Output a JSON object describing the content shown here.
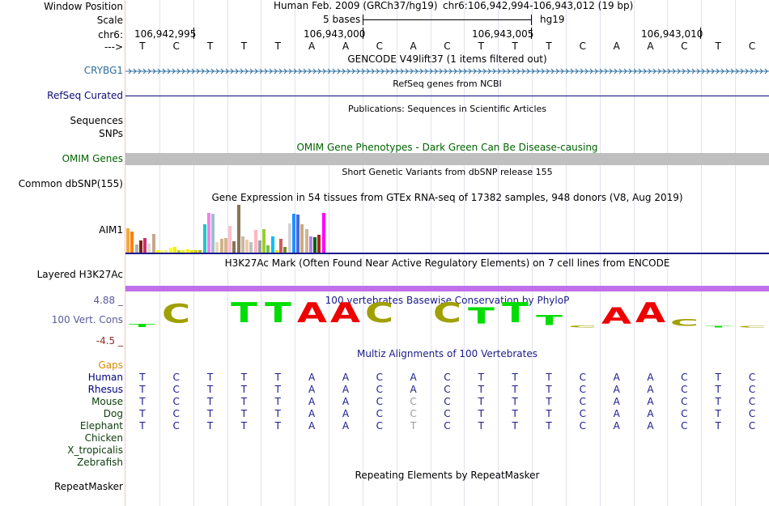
{
  "header": {
    "window_position_label": "Window Position",
    "scale_label": "Scale",
    "chrom_label": "chr6:",
    "strand_label": "--->",
    "assembly": "Human Feb. 2009 (GRCh37/hg19)",
    "position": "chr6:106,942,994-106,943,012 (19 bp)",
    "scale_text": "5 bases",
    "scale_db": "hg19",
    "coords": [
      "106,942,995",
      "106,943,000",
      "106,943,005",
      "106,943,010"
    ]
  },
  "sequence": [
    "T",
    "C",
    "T",
    "T",
    "T",
    "A",
    "A",
    "C",
    "A",
    "C",
    "T",
    "T",
    "T",
    "C",
    "A",
    "A",
    "C",
    "T",
    "C"
  ],
  "tracks": {
    "gencode_title": "GENCODE V49lift37 (1 items filtered out)",
    "crybg1_label": "CRYBG1",
    "refseq_title": "RefSeq genes from NCBI",
    "refseq_label": "RefSeq Curated",
    "pub_title": "Publications: Sequences in Scientific Articles",
    "sequences_label": "Sequences",
    "snps_label": "SNPs",
    "omim_title": "OMIM Gene Phenotypes - Dark Green Can Be Disease-causing",
    "omim_label": "OMIM Genes",
    "dbsnp_title": "Short Genetic Variants from dbSNP release 155",
    "dbsnp_label": "Common dbSNP(155)",
    "gtex_title": "Gene Expression in 54 tissues from GTEx RNA-seq of 17382 samples, 948 donors (V8, Aug 2019)",
    "gtex_label": "AIM1",
    "h3k27_title": "H3K27Ac Mark (Often Found Near Active Regulatory Elements) on 7 cell lines from ENCODE",
    "h3k27_label": "Layered H3K27Ac",
    "phylop_title": "100 vertebrates Basewise Conservation by PhyloP",
    "phylop_label": "100 Vert. Cons",
    "phylop_max": "4.88 _",
    "phylop_min": "-4.5 _",
    "multiz_title": "Multiz Alignments of 100 Vertebrates",
    "gaps_label": "Gaps",
    "repeat_title": "Repeating Elements by RepeatMasker",
    "repeat_label": "RepeatMasker"
  },
  "colors": {
    "crybg1": "#2e6fa0",
    "refseq": "#0c0c78",
    "omim": "#006400",
    "phylop_label": "#5a5a9c",
    "phylop_min": "#8b2d2d",
    "gaps": "#d68a00",
    "species": "#0b3d0b",
    "species_primate": "#000080",
    "h3k27": "#c070ea",
    "omim_bar": "#bfbfbf"
  },
  "gtex_bars": {
    "heights": [
      31,
      27,
      11,
      16,
      19,
      12,
      24,
      4,
      4,
      4,
      7,
      8,
      4,
      4,
      5,
      4,
      4,
      4,
      36,
      50,
      49,
      14,
      18,
      19,
      34,
      15,
      60,
      21,
      17,
      14,
      29,
      16,
      30,
      10,
      21,
      4,
      18,
      8,
      37,
      49,
      48,
      36,
      30,
      21,
      20,
      23,
      50
    ],
    "colors": [
      "#f4a742",
      "#ff7f00",
      "#b0b0b0",
      "#8b1a1a",
      "#cd2f6d",
      "#dcdcdc",
      "#c8a88c",
      "#f5f500",
      "#ffff66",
      "#f0e68c",
      "#ffff00",
      "#eeee00",
      "#cccc00",
      "#f0f000",
      "#ffef00",
      "#e0e000",
      "#c9c900",
      "#b5b500",
      "#1fc8c8",
      "#ee82ee",
      "#9ac0cd",
      "#eed5b7",
      "#cdb38b",
      "#d2b48c",
      "#ffc0cb",
      "#8b7355",
      "#8b7355",
      "#cdb79e",
      "#eecbad",
      "#c0c0c0",
      "#ffb6c1",
      "#a0a0a0",
      "#9acd32",
      "#7bc043",
      "#00bfff",
      "#ffd700",
      "#cd5c5c",
      "#6b8e23",
      "#d3d3d3",
      "#1e90ff",
      "#4169e1",
      "#cdaa7d",
      "#d2b48c",
      "#ab82ff",
      "#006400",
      "#b22222",
      "#ff00ff"
    ]
  },
  "phylop": {
    "bases": [
      "T",
      "C",
      "T",
      "T",
      "T",
      "A",
      "A",
      "C",
      "A",
      "C",
      "T",
      "T",
      "T",
      "C",
      "A",
      "A",
      "C",
      "T",
      "C"
    ],
    "scale": [
      0.15,
      0.95,
      0,
      1,
      1,
      1,
      1,
      1,
      0,
      1,
      0.8,
      1,
      0.5,
      0.1,
      0.8,
      1,
      0.35,
      0.08,
      0.08
    ],
    "colors": [
      "#00dd00",
      "#a0a000",
      "#ffffff",
      "#00dd00",
      "#00dd00",
      "#ee0000",
      "#ee0000",
      "#a0a000",
      "#ffffff",
      "#a0a000",
      "#00dd00",
      "#00dd00",
      "#00dd00",
      "#a0a000",
      "#ee0000",
      "#ee0000",
      "#a0a000",
      "#00dd00",
      "#a0a000"
    ]
  },
  "multiz": [
    {
      "name": "Human",
      "bases": [
        "T",
        "C",
        "T",
        "T",
        "T",
        "A",
        "A",
        "C",
        "A",
        "C",
        "T",
        "T",
        "T",
        "C",
        "A",
        "A",
        "C",
        "T",
        "C"
      ],
      "gray": []
    },
    {
      "name": "Rhesus",
      "bases": [
        "T",
        "C",
        "T",
        "T",
        "T",
        "A",
        "A",
        "C",
        "A",
        "C",
        "T",
        "T",
        "T",
        "C",
        "A",
        "A",
        "C",
        "T",
        "C"
      ],
      "gray": []
    },
    {
      "name": "Mouse",
      "bases": [
        "T",
        "C",
        "T",
        "T",
        "T",
        "A",
        "A",
        "C",
        "C",
        "C",
        "T",
        "T",
        "T",
        "C",
        "A",
        "A",
        "C",
        "T",
        "C"
      ],
      "gray": [
        8
      ]
    },
    {
      "name": "Dog",
      "bases": [
        "T",
        "C",
        "T",
        "T",
        "T",
        "A",
        "A",
        "C",
        "C",
        "C",
        "T",
        "T",
        "T",
        "C",
        "A",
        "A",
        "C",
        "T",
        "C"
      ],
      "gray": [
        8
      ]
    },
    {
      "name": "Elephant",
      "bases": [
        "T",
        "C",
        "T",
        "T",
        "T",
        "A",
        "A",
        "C",
        "T",
        "C",
        "T",
        "T",
        "T",
        "C",
        "A",
        "A",
        "C",
        "T",
        "C"
      ],
      "gray": [
        8
      ]
    },
    {
      "name": "Chicken",
      "bases": [],
      "gray": []
    },
    {
      "name": "X_tropicalis",
      "bases": [],
      "gray": []
    },
    {
      "name": "Zebrafish",
      "bases": [],
      "gray": []
    }
  ]
}
